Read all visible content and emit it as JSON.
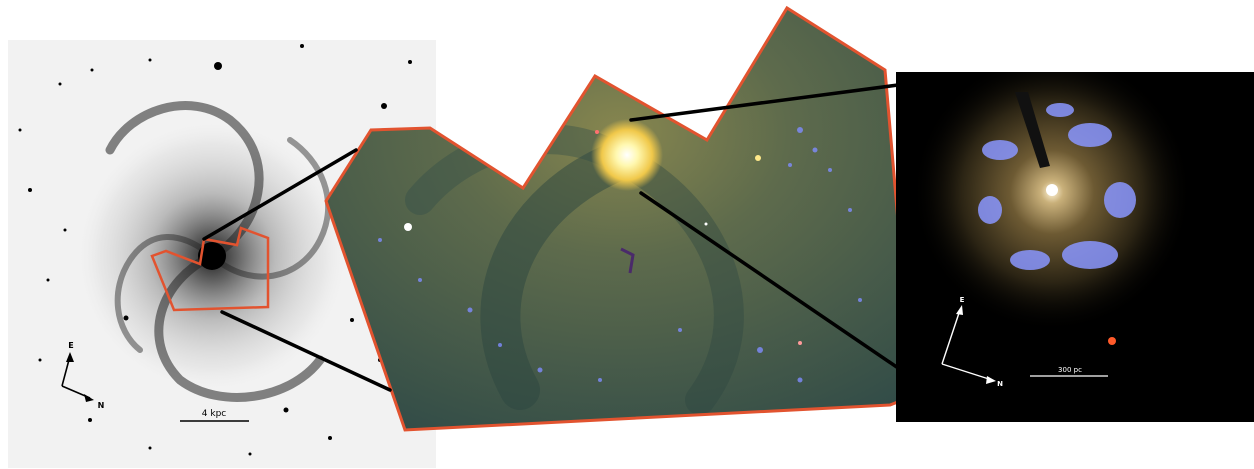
{
  "panels": {
    "left": {
      "scale_label": "4 kpc",
      "compass": {
        "east": "E",
        "north": "N"
      }
    },
    "right": {
      "scale_label": "300 pc",
      "compass": {
        "east": "E",
        "north": "N"
      }
    }
  },
  "colors": {
    "outline": "#e2532f",
    "connector": "#000000",
    "galaxy_ink": "#1a1a1a",
    "mosaic_base": "#3f5b50",
    "nucleus": "#ffe77a",
    "hii_regions": "#7f8cff"
  }
}
